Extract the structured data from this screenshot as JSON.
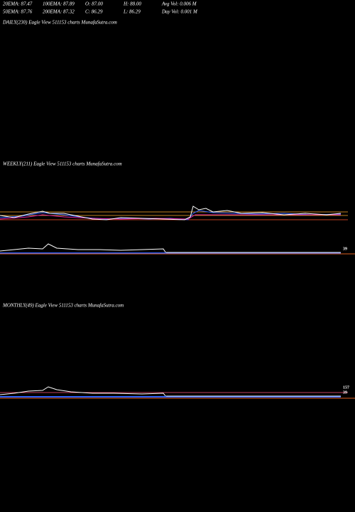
{
  "header": {
    "row1": [
      "20EMA: 87.47",
      "100EMA: 87.89",
      "O: 87.00",
      "H: 88.00",
      "Avg Vol: 0.006  M"
    ],
    "row2": [
      "50EMA: 87.76",
      "200EMA: 87.32",
      "C: 86.29",
      "L: 86.29",
      "Day Vol: 0.001  M"
    ]
  },
  "panels": [
    {
      "label": "DAILY(230) Eagle   View   511153 charts MunafaSutra.com"
    },
    {
      "label": "WEEKLY(211) Eagle   View   511153 charts MunafaSutra.com",
      "tags": [
        "39"
      ]
    },
    {
      "label": "MONTHLY(49) Eagle   View   511153 charts MunafaSutra.com",
      "tags": [
        "157",
        "39"
      ]
    }
  ]
}
